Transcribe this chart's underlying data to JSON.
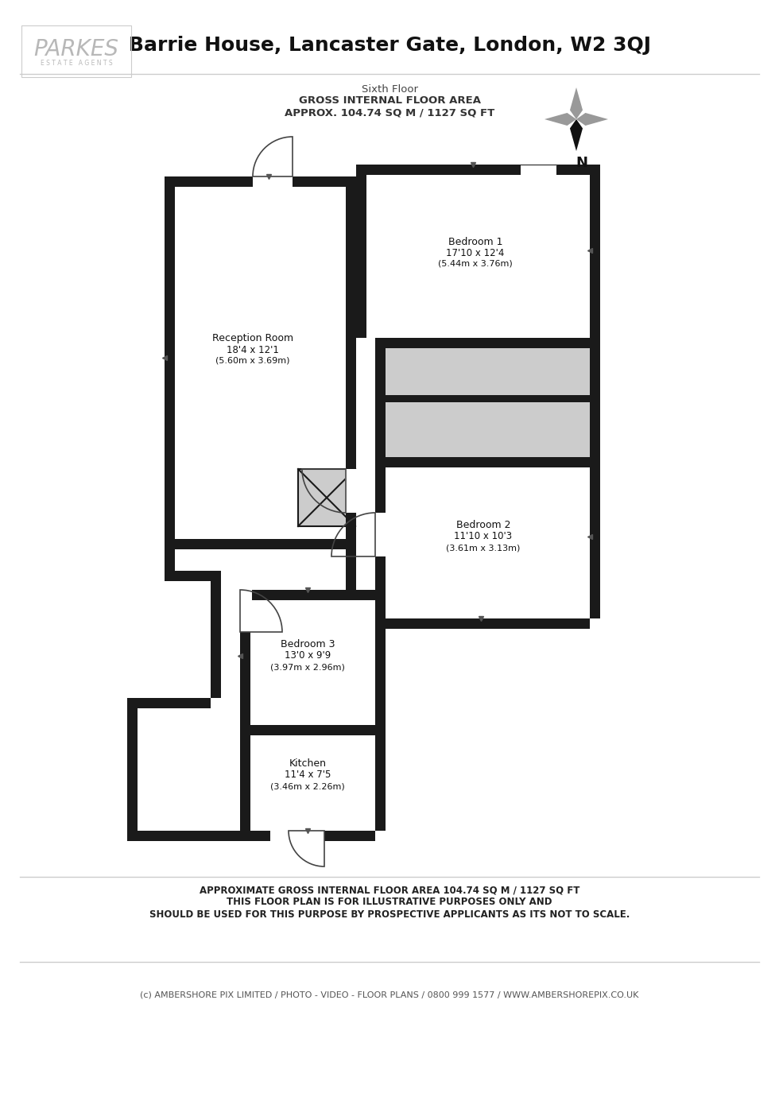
{
  "title": "Barrie House, Lancaster Gate, London, W2 3QJ",
  "subtitle_line1": "Sixth Floor",
  "subtitle_line2": "GROSS INTERNAL FLOOR AREA",
  "subtitle_line3": "APPROX. 104.74 SQ M / 1127 SQ FT",
  "footer_line1": "APPROXIMATE GROSS INTERNAL FLOOR AREA 104.74 SQ M / 1127 SQ FT",
  "footer_line2": "THIS FLOOR PLAN IS FOR ILLUSTRATIVE PURPOSES ONLY AND",
  "footer_line3": "SHOULD BE USED FOR THIS PURPOSE BY PROSPECTIVE APPLICANTS AS ITS NOT TO SCALE.",
  "footer_line4": "(c) AMBERSHORE PIX LIMITED / PHOTO - VIDEO - FLOOR PLANS / 0800 999 1577 / WWW.AMBERSHOREPIX.CO.UK",
  "logo_text": "PARKES",
  "logo_sub": "E S T A T E   A G E N T S",
  "wall_color": "#1a1a1a",
  "floor_color": "#ffffff",
  "wet_room_color": "#cccccc",
  "bg_color": "#ffffff"
}
